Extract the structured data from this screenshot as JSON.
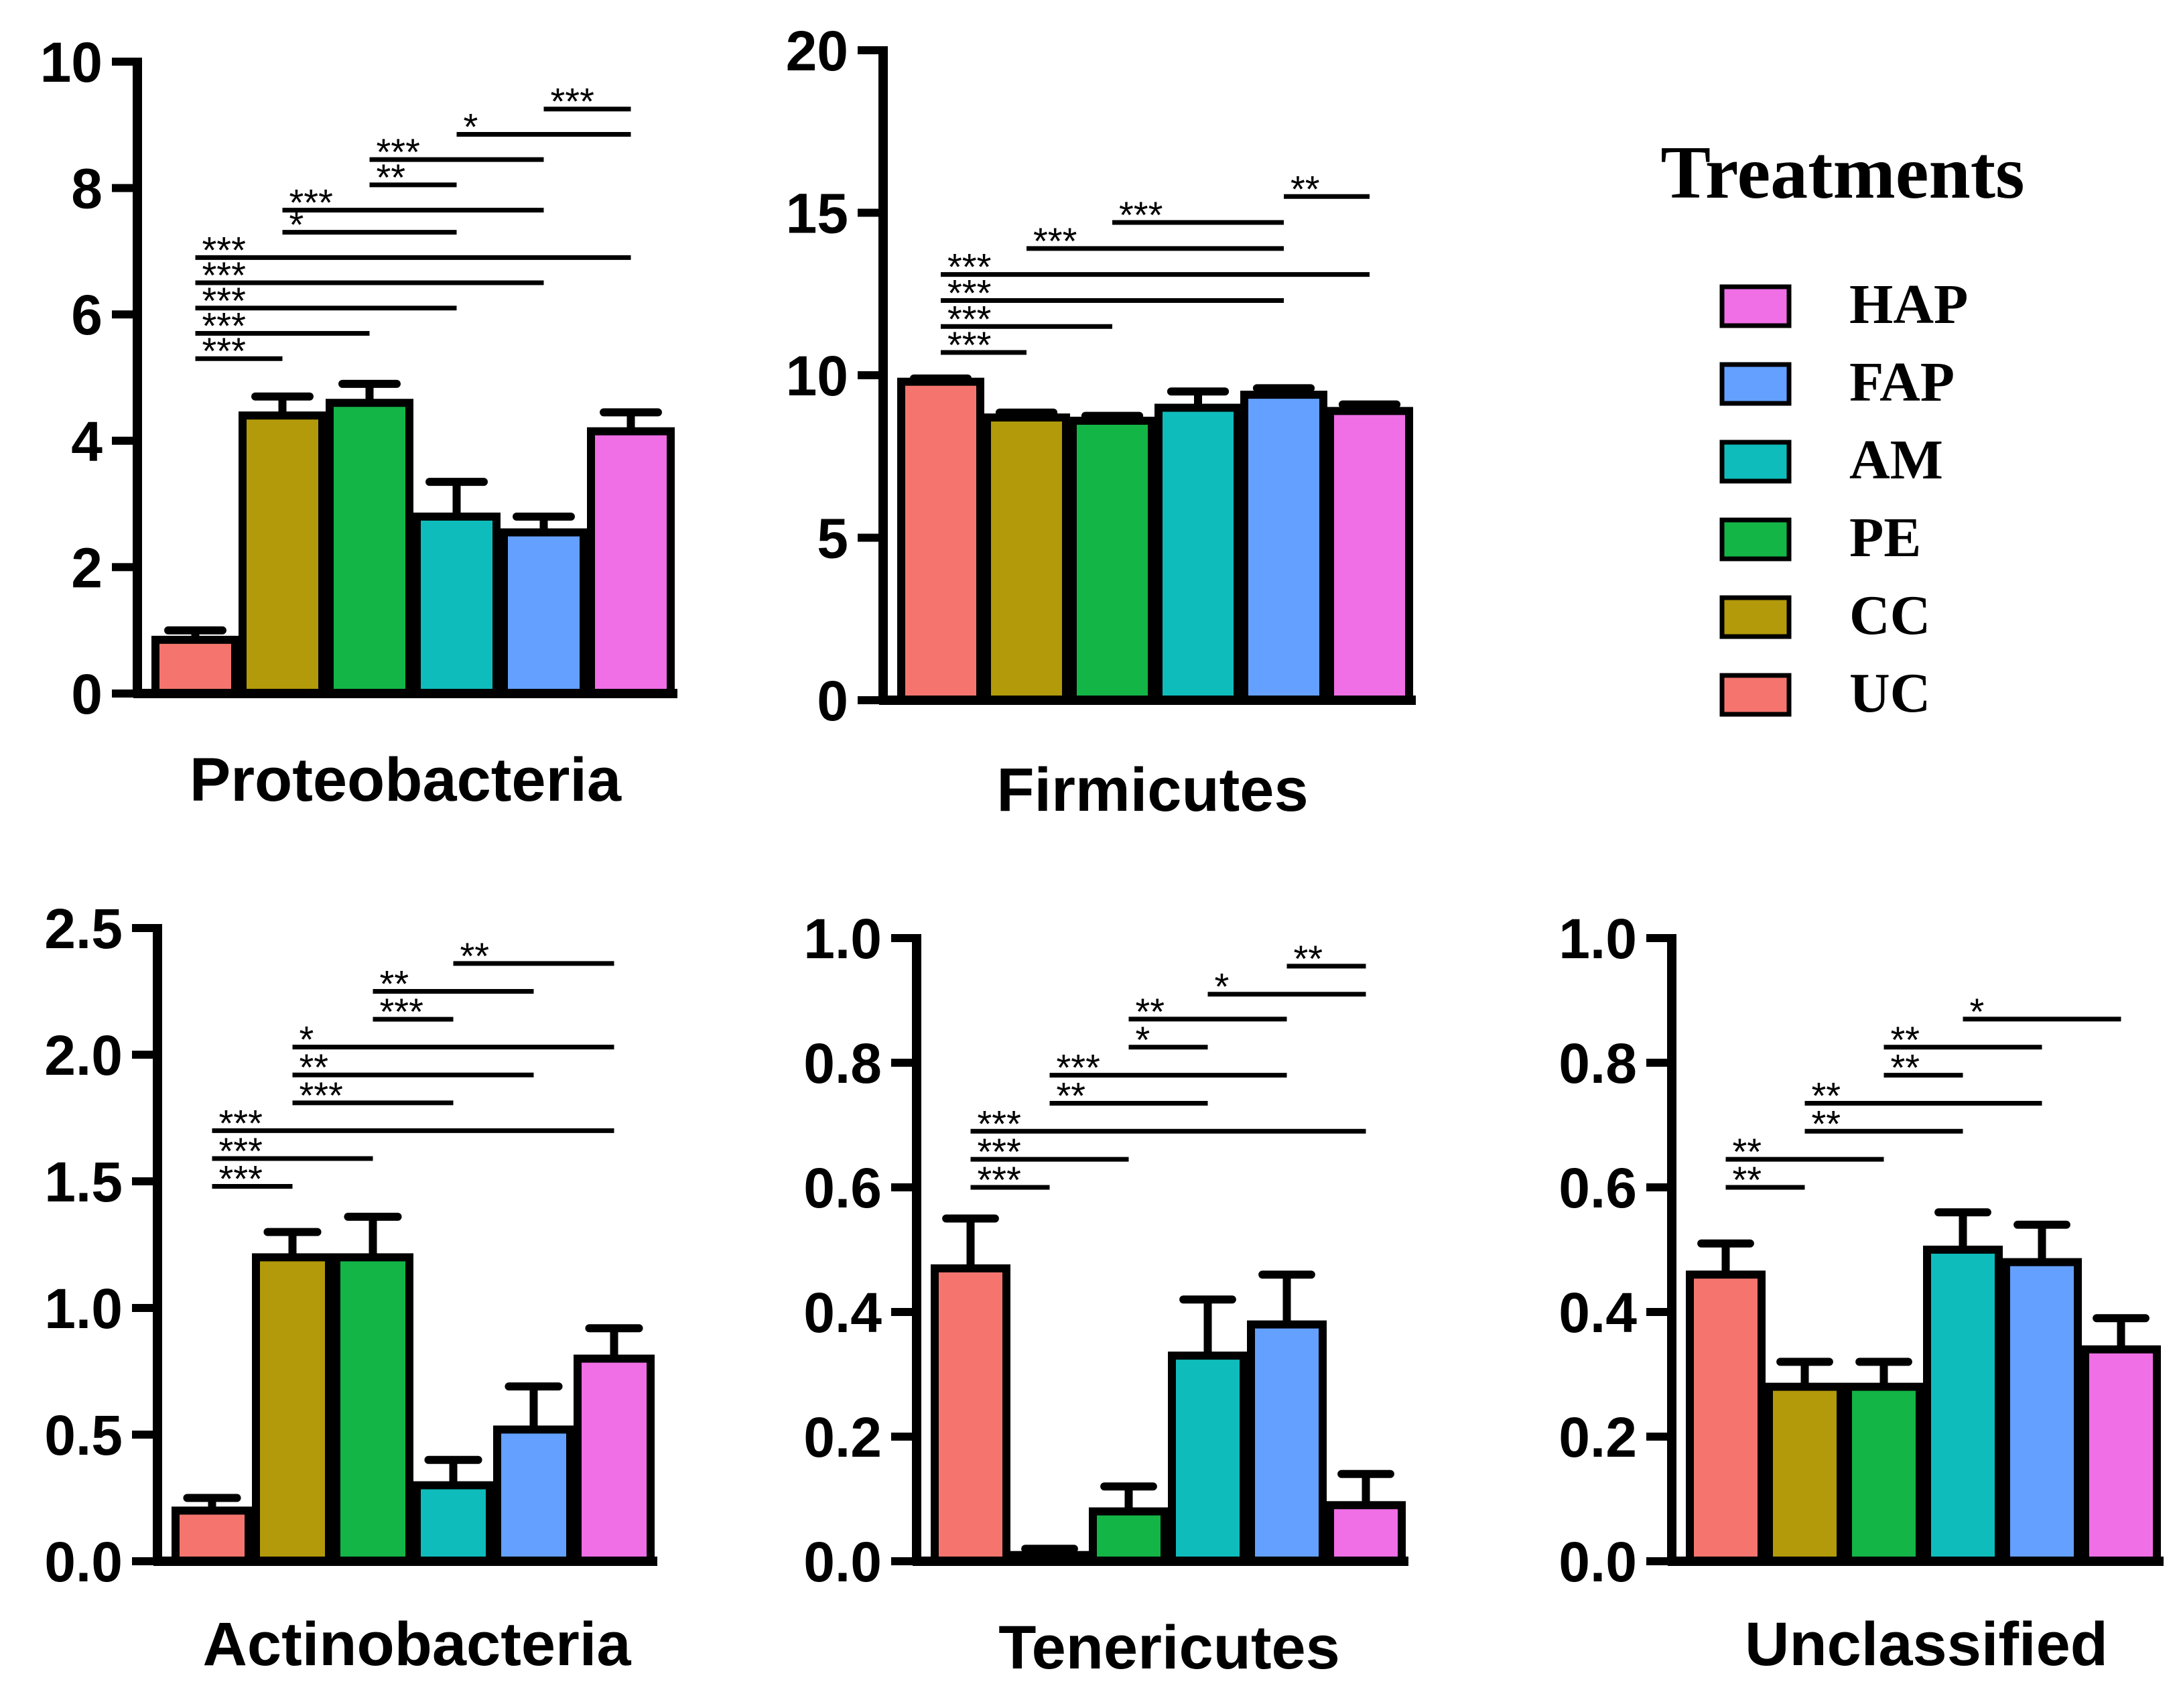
{
  "legend": {
    "title": "Treatments",
    "entries": [
      {
        "label": "HAP",
        "color": "#f06ee6"
      },
      {
        "label": "FAP",
        "color": "#64a0ff"
      },
      {
        "label": "AM",
        "color": "#0fbcbc"
      },
      {
        "label": "PE",
        "color": "#13b547"
      },
      {
        "label": "CC",
        "color": "#b29a0a"
      },
      {
        "label": "UC",
        "color": "#f5756e"
      }
    ]
  },
  "chart_data": [
    {
      "type": "bar",
      "title": "Proteobacteria",
      "categories": [
        "UC",
        "CC",
        "PE",
        "AM",
        "FAP",
        "HAP"
      ],
      "values": [
        0.85,
        4.4,
        4.6,
        2.8,
        2.55,
        4.15
      ],
      "errors": [
        0.15,
        0.3,
        0.3,
        0.55,
        0.25,
        0.3
      ],
      "ylim": [
        0,
        10
      ],
      "yticks": [
        "0",
        "2",
        "4",
        "6",
        "8",
        "10"
      ],
      "tick_values": [
        0,
        2,
        4,
        6,
        8,
        10
      ],
      "significance": [
        {
          "from": 0,
          "to": 1,
          "label": "***",
          "y": 5.3
        },
        {
          "from": 0,
          "to": 2,
          "label": "***",
          "y": 5.7
        },
        {
          "from": 0,
          "to": 3,
          "label": "***",
          "y": 6.1
        },
        {
          "from": 0,
          "to": 4,
          "label": "***",
          "y": 6.5
        },
        {
          "from": 0,
          "to": 5,
          "label": "***",
          "y": 6.9
        },
        {
          "from": 1,
          "to": 3,
          "label": "*",
          "y": 7.3
        },
        {
          "from": 1,
          "to": 4,
          "label": "***",
          "y": 7.65
        },
        {
          "from": 2,
          "to": 3,
          "label": "**",
          "y": 8.05
        },
        {
          "from": 2,
          "to": 4,
          "label": "***",
          "y": 8.45
        },
        {
          "from": 3,
          "to": 5,
          "label": "*",
          "y": 8.85
        },
        {
          "from": 4,
          "to": 5,
          "label": "***",
          "y": 9.25
        }
      ]
    },
    {
      "type": "bar",
      "title": "Firmicutes",
      "categories": [
        "UC",
        "CC",
        "PE",
        "AM",
        "FAP",
        "HAP"
      ],
      "values": [
        9.8,
        8.7,
        8.6,
        9.0,
        9.4,
        8.9
      ],
      "errors": [
        0.1,
        0.15,
        0.15,
        0.5,
        0.2,
        0.2
      ],
      "ylim": [
        0,
        20
      ],
      "yticks": [
        "0",
        "5",
        "10",
        "15",
        "20"
      ],
      "tick_values": [
        0,
        5,
        10,
        15,
        20
      ],
      "significance": [
        {
          "from": 0,
          "to": 1,
          "label": "***",
          "y": 10.7
        },
        {
          "from": 0,
          "to": 2,
          "label": "***",
          "y": 11.5
        },
        {
          "from": 0,
          "to": 4,
          "label": "***",
          "y": 12.3
        },
        {
          "from": 0,
          "to": 5,
          "label": "***",
          "y": 13.1
        },
        {
          "from": 1,
          "to": 4,
          "label": "***",
          "y": 13.9
        },
        {
          "from": 2,
          "to": 4,
          "label": "***",
          "y": 14.7
        },
        {
          "from": 4,
          "to": 5,
          "label": "**",
          "y": 15.5
        }
      ]
    },
    {
      "type": "bar",
      "title": "Actinobacteria",
      "categories": [
        "UC",
        "CC",
        "PE",
        "AM",
        "FAP",
        "HAP"
      ],
      "values": [
        0.2,
        1.2,
        1.2,
        0.3,
        0.52,
        0.8
      ],
      "errors": [
        0.05,
        0.1,
        0.16,
        0.1,
        0.17,
        0.12
      ],
      "ylim": [
        0,
        2.5
      ],
      "yticks": [
        "0.0",
        "0.5",
        "1.0",
        "1.5",
        "2.0",
        "2.5"
      ],
      "tick_values": [
        0,
        0.5,
        1.0,
        1.5,
        2.0,
        2.5
      ],
      "significance": [
        {
          "from": 0,
          "to": 1,
          "label": "***",
          "y": 1.48
        },
        {
          "from": 0,
          "to": 2,
          "label": "***",
          "y": 1.59
        },
        {
          "from": 0,
          "to": 5,
          "label": "***",
          "y": 1.7
        },
        {
          "from": 1,
          "to": 3,
          "label": "***",
          "y": 1.81
        },
        {
          "from": 1,
          "to": 4,
          "label": "**",
          "y": 1.92
        },
        {
          "from": 1,
          "to": 5,
          "label": "*",
          "y": 2.03
        },
        {
          "from": 2,
          "to": 3,
          "label": "***",
          "y": 2.14
        },
        {
          "from": 2,
          "to": 4,
          "label": "**",
          "y": 2.25
        },
        {
          "from": 3,
          "to": 5,
          "label": "**",
          "y": 2.36
        }
      ]
    },
    {
      "type": "bar",
      "title": "Tenericutes",
      "categories": [
        "UC",
        "CC",
        "PE",
        "AM",
        "FAP",
        "HAP"
      ],
      "values": [
        0.47,
        0.01,
        0.08,
        0.33,
        0.38,
        0.09
      ],
      "errors": [
        0.08,
        0.01,
        0.04,
        0.09,
        0.08,
        0.05
      ],
      "ylim": [
        0,
        1.0
      ],
      "yticks": [
        "0.0",
        "0.2",
        "0.4",
        "0.6",
        "0.8",
        "1.0"
      ],
      "tick_values": [
        0,
        0.2,
        0.4,
        0.6,
        0.8,
        1.0
      ],
      "significance": [
        {
          "from": 0,
          "to": 1,
          "label": "***",
          "y": 0.6
        },
        {
          "from": 0,
          "to": 2,
          "label": "***",
          "y": 0.645
        },
        {
          "from": 0,
          "to": 5,
          "label": "***",
          "y": 0.69
        },
        {
          "from": 1,
          "to": 3,
          "label": "**",
          "y": 0.735
        },
        {
          "from": 1,
          "to": 4,
          "label": "***",
          "y": 0.78
        },
        {
          "from": 2,
          "to": 3,
          "label": "*",
          "y": 0.825
        },
        {
          "from": 2,
          "to": 4,
          "label": "**",
          "y": 0.87
        },
        {
          "from": 3,
          "to": 5,
          "label": "*",
          "y": 0.91
        },
        {
          "from": 4,
          "to": 5,
          "label": "**",
          "y": 0.955
        }
      ]
    },
    {
      "type": "bar",
      "title": "Unclassified",
      "categories": [
        "UC",
        "CC",
        "PE",
        "AM",
        "FAP",
        "HAP"
      ],
      "values": [
        0.46,
        0.28,
        0.28,
        0.5,
        0.48,
        0.34
      ],
      "errors": [
        0.05,
        0.04,
        0.04,
        0.06,
        0.06,
        0.05
      ],
      "ylim": [
        0,
        1.0
      ],
      "yticks": [
        "0.0",
        "0.2",
        "0.4",
        "0.6",
        "0.8",
        "1.0"
      ],
      "tick_values": [
        0,
        0.2,
        0.4,
        0.6,
        0.8,
        1.0
      ],
      "significance": [
        {
          "from": 0,
          "to": 1,
          "label": "**",
          "y": 0.6
        },
        {
          "from": 0,
          "to": 2,
          "label": "**",
          "y": 0.645
        },
        {
          "from": 1,
          "to": 3,
          "label": "**",
          "y": 0.69
        },
        {
          "from": 1,
          "to": 4,
          "label": "**",
          "y": 0.735
        },
        {
          "from": 2,
          "to": 3,
          "label": "**",
          "y": 0.78
        },
        {
          "from": 2,
          "to": 4,
          "label": "**",
          "y": 0.825
        },
        {
          "from": 3,
          "to": 5,
          "label": "*",
          "y": 0.87
        }
      ]
    }
  ]
}
